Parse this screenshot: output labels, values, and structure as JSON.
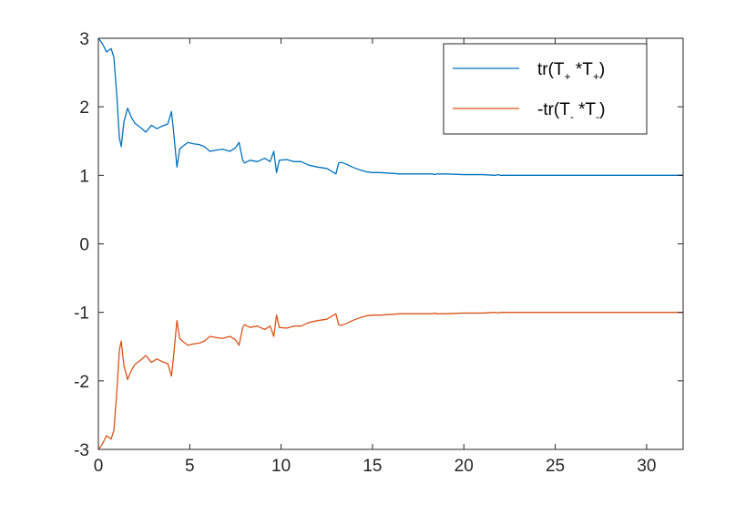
{
  "chart_data": {
    "type": "line",
    "title": "",
    "xlabel": "",
    "ylabel": "",
    "xlim": [
      0,
      32
    ],
    "ylim": [
      -3,
      3
    ],
    "x_ticks": [
      0,
      5,
      10,
      15,
      20,
      25,
      30
    ],
    "y_ticks": [
      -3,
      -2,
      -1,
      0,
      1,
      2,
      3
    ],
    "grid": false,
    "legend_position": "top-right",
    "legend": [
      {
        "base": "tr(T",
        "sub1": "+",
        "mid": " *T",
        "sub2": "+",
        "end": ")"
      },
      {
        "base": "-tr(T",
        "sub1": "-",
        "mid": " *T",
        "sub2": "-",
        "end": ")"
      }
    ],
    "series": [
      {
        "color": "#0072BD",
        "x": [
          0,
          0.2,
          0.45,
          0.7,
          0.85,
          1.0,
          1.15,
          1.25,
          1.4,
          1.6,
          1.8,
          2.0,
          2.3,
          2.6,
          2.9,
          3.2,
          3.5,
          3.8,
          4.0,
          4.1,
          4.3,
          4.45,
          4.6,
          4.9,
          5.2,
          5.5,
          5.8,
          6.1,
          6.5,
          6.8,
          7.2,
          7.5,
          7.7,
          7.9,
          8.0,
          8.3,
          8.7,
          9.1,
          9.4,
          9.6,
          9.75,
          9.9,
          10.3,
          10.7,
          11.1,
          11.5,
          12.0,
          12.5,
          13.0,
          13.15,
          13.3,
          13.6,
          13.9,
          14.3,
          14.7,
          15.0,
          15.4,
          16.0,
          16.5,
          17.0,
          17.5,
          18.0,
          18.3,
          18.4,
          18.5,
          19.0,
          20.0,
          21.0,
          21.7,
          21.9,
          22.0,
          23.0,
          24.0,
          25.0,
          26.0,
          27.0,
          28.0,
          29.0,
          30.0,
          31.0,
          32.0
        ],
        "y": [
          3.0,
          2.93,
          2.8,
          2.85,
          2.72,
          2.2,
          1.55,
          1.42,
          1.78,
          1.98,
          1.85,
          1.76,
          1.7,
          1.63,
          1.73,
          1.68,
          1.72,
          1.75,
          1.93,
          1.68,
          1.12,
          1.38,
          1.42,
          1.48,
          1.46,
          1.45,
          1.42,
          1.35,
          1.37,
          1.38,
          1.35,
          1.4,
          1.48,
          1.22,
          1.18,
          1.22,
          1.2,
          1.25,
          1.2,
          1.35,
          1.04,
          1.22,
          1.23,
          1.2,
          1.2,
          1.15,
          1.12,
          1.1,
          1.02,
          1.18,
          1.19,
          1.16,
          1.12,
          1.08,
          1.05,
          1.04,
          1.04,
          1.03,
          1.02,
          1.02,
          1.02,
          1.02,
          1.02,
          1.01,
          1.02,
          1.02,
          1.01,
          1.01,
          1.0,
          1.01,
          1.0,
          1.0,
          1.0,
          1.0,
          1.0,
          1.0,
          1.0,
          1.0,
          1.0,
          1.0,
          1.0
        ]
      },
      {
        "color": "#D95319",
        "x": [
          0,
          0.2,
          0.45,
          0.7,
          0.85,
          1.0,
          1.15,
          1.25,
          1.4,
          1.6,
          1.8,
          2.0,
          2.3,
          2.6,
          2.9,
          3.2,
          3.5,
          3.8,
          4.0,
          4.1,
          4.3,
          4.45,
          4.6,
          4.9,
          5.2,
          5.5,
          5.8,
          6.1,
          6.5,
          6.8,
          7.2,
          7.5,
          7.7,
          7.9,
          8.0,
          8.3,
          8.7,
          9.1,
          9.4,
          9.6,
          9.75,
          9.9,
          10.3,
          10.7,
          11.1,
          11.5,
          12.0,
          12.5,
          13.0,
          13.15,
          13.3,
          13.6,
          13.9,
          14.3,
          14.7,
          15.0,
          15.4,
          16.0,
          16.5,
          17.0,
          17.5,
          18.0,
          18.3,
          18.4,
          18.5,
          19.0,
          20.0,
          21.0,
          21.7,
          21.9,
          22.0,
          23.0,
          24.0,
          25.0,
          26.0,
          27.0,
          28.0,
          29.0,
          30.0,
          31.0,
          32.0
        ],
        "y": [
          -3.0,
          -2.93,
          -2.8,
          -2.85,
          -2.72,
          -2.2,
          -1.55,
          -1.42,
          -1.78,
          -1.98,
          -1.85,
          -1.76,
          -1.7,
          -1.63,
          -1.73,
          -1.68,
          -1.72,
          -1.75,
          -1.93,
          -1.68,
          -1.12,
          -1.38,
          -1.42,
          -1.48,
          -1.46,
          -1.45,
          -1.42,
          -1.35,
          -1.37,
          -1.38,
          -1.35,
          -1.4,
          -1.48,
          -1.22,
          -1.18,
          -1.22,
          -1.2,
          -1.25,
          -1.2,
          -1.35,
          -1.04,
          -1.22,
          -1.23,
          -1.2,
          -1.2,
          -1.15,
          -1.12,
          -1.1,
          -1.02,
          -1.18,
          -1.19,
          -1.16,
          -1.12,
          -1.08,
          -1.05,
          -1.04,
          -1.04,
          -1.03,
          -1.02,
          -1.02,
          -1.02,
          -1.02,
          -1.02,
          -1.01,
          -1.02,
          -1.02,
          -1.01,
          -1.01,
          -1.0,
          -1.01,
          -1.0,
          -1.0,
          -1.0,
          -1.0,
          -1.0,
          -1.0,
          -1.0,
          -1.0,
          -1.0,
          -1.0,
          -1.0
        ]
      }
    ]
  }
}
